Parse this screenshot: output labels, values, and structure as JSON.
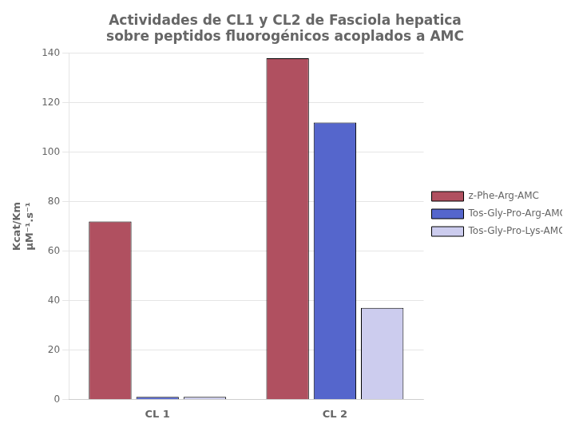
{
  "chart_data": {
    "type": "bar",
    "title": "Actividades de CL1 y CL2 de Fasciola hepatica\nsobre peptidos fluorogénicos acoplados a AMC",
    "ylabel": "Kcat/Km\nμM⁻¹.s⁻¹",
    "categories": [
      "CL 1",
      "CL 2"
    ],
    "series": [
      {
        "name": "z-Phe-Arg-AMC",
        "color": "#b05060",
        "values": [
          72,
          138
        ]
      },
      {
        "name": "Tos-Gly-Pro-Arg-AMC",
        "color": "#5566cc",
        "values": [
          1,
          112
        ]
      },
      {
        "name": "Tos-Gly-Pro-Lys-AMC",
        "color": "#ccccee",
        "values": [
          1,
          37
        ]
      }
    ],
    "ylim": [
      0,
      140
    ],
    "yticks": [
      0,
      20,
      40,
      60,
      80,
      100,
      120,
      140
    ],
    "grid": true,
    "legend": "right"
  }
}
